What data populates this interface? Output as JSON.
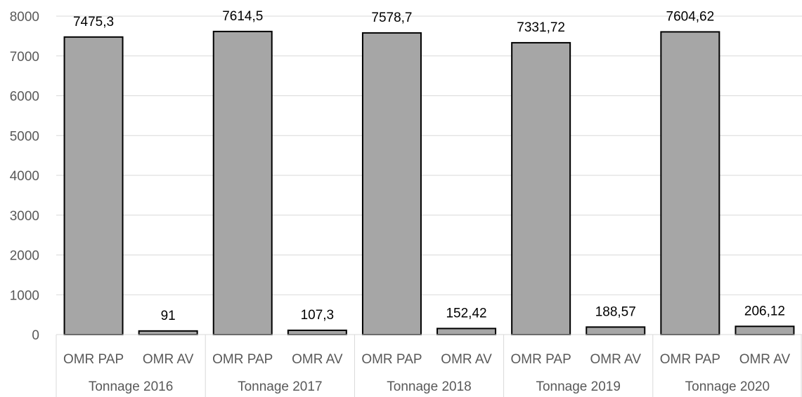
{
  "chart_data": {
    "type": "bar",
    "title": "",
    "xlabel": "",
    "ylabel": "",
    "ylim": [
      0,
      8000
    ],
    "yticks": [
      0,
      1000,
      2000,
      3000,
      4000,
      5000,
      6000,
      7000,
      8000
    ],
    "grid": true,
    "legend": "none",
    "bar_color": "#a6a6a6",
    "bar_edge_color": "#000000",
    "groups": [
      {
        "label": "Tonnage 2016",
        "bars": [
          {
            "category": "OMR PAP",
            "value": 7475.3,
            "label": "7475,3"
          },
          {
            "category": "OMR AV",
            "value": 91,
            "label": "91"
          }
        ]
      },
      {
        "label": "Tonnage  2017",
        "bars": [
          {
            "category": "OMR PAP",
            "value": 7614.5,
            "label": "7614,5"
          },
          {
            "category": "OMR AV",
            "value": 107.3,
            "label": "107,3"
          }
        ]
      },
      {
        "label": "Tonnage 2018",
        "bars": [
          {
            "category": "OMR PAP",
            "value": 7578.7,
            "label": "7578,7"
          },
          {
            "category": "OMR AV",
            "value": 152.42,
            "label": "152,42"
          }
        ]
      },
      {
        "label": "Tonnage 2019",
        "bars": [
          {
            "category": "OMR PAP",
            "value": 7331.72,
            "label": "7331,72"
          },
          {
            "category": "OMR AV",
            "value": 188.57,
            "label": "188,57"
          }
        ]
      },
      {
        "label": "Tonnage 2020",
        "bars": [
          {
            "category": "OMR PAP",
            "value": 7604.62,
            "label": "7604,62"
          },
          {
            "category": "OMR AV",
            "value": 206.12,
            "label": "206,12"
          }
        ]
      }
    ]
  }
}
